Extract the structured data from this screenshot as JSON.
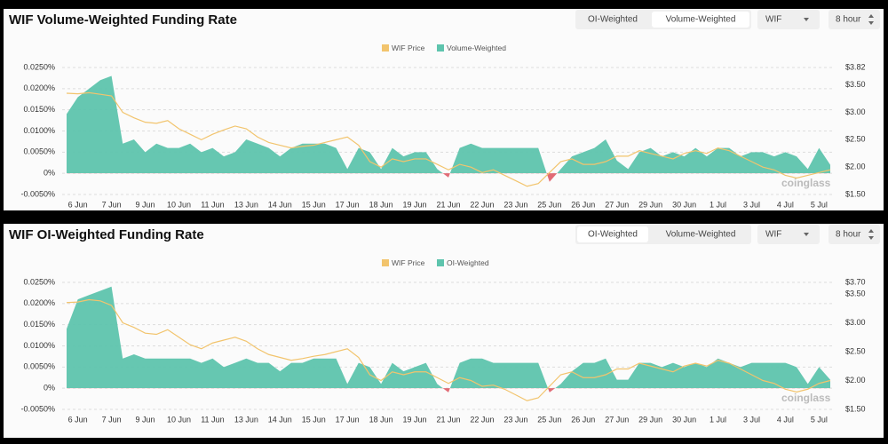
{
  "chart_data": [
    {
      "type": "area",
      "title": "WIF Volume-Weighted Funding Rate",
      "tabs": [
        "OI-Weighted",
        "Volume-Weighted"
      ],
      "active_tab": 1,
      "symbol": "WIF",
      "interval": "8 hour",
      "watermark": "coinglass",
      "categories": [
        null,
        "6 Jun",
        null,
        null,
        "7 Jun",
        null,
        null,
        "9 Jun",
        null,
        null,
        "10 Jun",
        null,
        null,
        "11 Jun",
        null,
        null,
        "13 Jun",
        null,
        null,
        "14 Jun",
        null,
        null,
        "15 Jun",
        null,
        null,
        "17 Jun",
        null,
        null,
        "18 Jun",
        null,
        null,
        "19 Jun",
        null,
        null,
        "21 Jun",
        null,
        null,
        "22 Jun",
        null,
        null,
        "23 Jun",
        null,
        null,
        "25 Jun",
        null,
        null,
        "26 Jun",
        null,
        null,
        "27 Jun",
        null,
        null,
        "29 Jun",
        null,
        null,
        "30 Jun",
        null,
        null,
        "1 Jul",
        null,
        null,
        "3 Jul",
        null,
        null,
        "4 Jul",
        null,
        null,
        "5 Jul",
        null
      ],
      "series": [
        {
          "name": "WIF Price",
          "type": "line",
          "axis": "y2",
          "color": "#f2c46d",
          "values": [
            3.35,
            3.34,
            3.36,
            3.33,
            3.3,
            3.0,
            2.9,
            2.82,
            2.8,
            2.85,
            2.7,
            2.6,
            2.5,
            2.6,
            2.68,
            2.75,
            2.7,
            2.55,
            2.45,
            2.4,
            2.35,
            2.38,
            2.4,
            2.45,
            2.5,
            2.55,
            2.4,
            2.1,
            2.0,
            2.15,
            2.1,
            2.15,
            2.15,
            2.05,
            1.95,
            2.05,
            2.0,
            1.9,
            1.95,
            1.85,
            1.75,
            1.65,
            1.7,
            1.9,
            2.1,
            2.15,
            2.05,
            2.05,
            2.1,
            2.2,
            2.2,
            2.3,
            2.25,
            2.2,
            2.15,
            2.25,
            2.3,
            2.25,
            2.35,
            2.3,
            2.2,
            2.1,
            2.0,
            1.95,
            1.85,
            1.8,
            1.85,
            1.9,
            1.95
          ]
        },
        {
          "name": "Volume-Weighted",
          "type": "area",
          "color": "#5ec4ad",
          "negative_color": "#e0636e",
          "values": [
            0.014,
            0.018,
            0.02,
            0.022,
            0.023,
            0.007,
            0.008,
            0.005,
            0.007,
            0.006,
            0.006,
            0.007,
            0.005,
            0.006,
            0.004,
            0.005,
            0.008,
            0.007,
            0.006,
            0.004,
            0.006,
            0.007,
            0.007,
            0.007,
            0.006,
            0.001,
            0.006,
            0.005,
            0.001,
            0.006,
            0.004,
            0.005,
            0.005,
            0.001,
            -0.001,
            0.006,
            0.007,
            0.006,
            0.006,
            0.006,
            0.006,
            0.006,
            0.006,
            -0.002,
            0.001,
            0.004,
            0.005,
            0.006,
            0.008,
            0.003,
            0.001,
            0.005,
            0.006,
            0.004,
            0.005,
            0.004,
            0.006,
            0.004,
            0.006,
            0.006,
            0.004,
            0.005,
            0.005,
            0.004,
            0.005,
            0.004,
            0.001,
            0.006,
            0.002
          ]
        }
      ],
      "ylim": [
        -0.005,
        0.025
      ],
      "yticks": [
        {
          "value": -0.005,
          "label": "-0.0050%"
        },
        {
          "value": 0,
          "label": "0%"
        },
        {
          "value": 0.005,
          "label": "0.0050%"
        },
        {
          "value": 0.01,
          "label": "0.0100%"
        },
        {
          "value": 0.015,
          "label": "0.0150%"
        },
        {
          "value": 0.02,
          "label": "0.0200%"
        },
        {
          "value": 0.025,
          "label": "0.0250%"
        }
      ],
      "y2lim": [
        1.5,
        3.82
      ],
      "y2ticks": [
        {
          "value": 1.5,
          "label": "$1.50"
        },
        {
          "value": 2,
          "label": "$2.00"
        },
        {
          "value": 2.5,
          "label": "$2.50"
        },
        {
          "value": 3,
          "label": "$3.00"
        },
        {
          "value": 3.5,
          "label": "$3.50"
        },
        {
          "value": 3.82,
          "label": "$3.82"
        }
      ],
      "grid": true
    },
    {
      "type": "area",
      "title": "WIF OI-Weighted Funding Rate",
      "tabs": [
        "OI-Weighted",
        "Volume-Weighted"
      ],
      "active_tab": 0,
      "symbol": "WIF",
      "interval": "8 hour",
      "watermark": "coinglass",
      "categories": [
        null,
        "6 Jun",
        null,
        null,
        "7 Jun",
        null,
        null,
        "9 Jun",
        null,
        null,
        "10 Jun",
        null,
        null,
        "11 Jun",
        null,
        null,
        "13 Jun",
        null,
        null,
        "14 Jun",
        null,
        null,
        "15 Jun",
        null,
        null,
        "17 Jun",
        null,
        null,
        "18 Jun",
        null,
        null,
        "19 Jun",
        null,
        null,
        "21 Jun",
        null,
        null,
        "22 Jun",
        null,
        null,
        "23 Jun",
        null,
        null,
        "25 Jun",
        null,
        null,
        "26 Jun",
        null,
        null,
        "27 Jun",
        null,
        null,
        "29 Jun",
        null,
        null,
        "30 Jun",
        null,
        null,
        "1 Jul",
        null,
        null,
        "3 Jul",
        null,
        null,
        "4 Jul",
        null,
        null,
        "5 Jul",
        null
      ],
      "series": [
        {
          "name": "WIF Price",
          "type": "line",
          "axis": "y2",
          "color": "#f2c46d",
          "values": [
            3.35,
            3.36,
            3.4,
            3.38,
            3.3,
            3.0,
            2.92,
            2.82,
            2.8,
            2.88,
            2.75,
            2.62,
            2.55,
            2.65,
            2.7,
            2.75,
            2.68,
            2.55,
            2.45,
            2.4,
            2.35,
            2.38,
            2.42,
            2.45,
            2.5,
            2.55,
            2.4,
            2.1,
            2.0,
            2.15,
            2.1,
            2.15,
            2.15,
            2.05,
            1.95,
            2.05,
            2.0,
            1.9,
            1.92,
            1.85,
            1.75,
            1.65,
            1.7,
            1.9,
            2.1,
            2.15,
            2.05,
            2.05,
            2.1,
            2.2,
            2.2,
            2.3,
            2.25,
            2.2,
            2.15,
            2.25,
            2.3,
            2.25,
            2.35,
            2.3,
            2.2,
            2.1,
            2.0,
            1.95,
            1.85,
            1.8,
            1.85,
            1.95,
            2.0
          ]
        },
        {
          "name": "OI-Weighted",
          "type": "area",
          "color": "#5ec4ad",
          "negative_color": "#e0636e",
          "values": [
            0.014,
            0.021,
            0.022,
            0.023,
            0.024,
            0.007,
            0.008,
            0.007,
            0.007,
            0.007,
            0.007,
            0.007,
            0.006,
            0.007,
            0.005,
            0.006,
            0.007,
            0.006,
            0.006,
            0.004,
            0.006,
            0.006,
            0.007,
            0.007,
            0.007,
            0.001,
            0.006,
            0.005,
            0.001,
            0.006,
            0.004,
            0.005,
            0.006,
            0.001,
            -0.001,
            0.006,
            0.007,
            0.007,
            0.006,
            0.006,
            0.006,
            0.006,
            0.006,
            -0.001,
            0.001,
            0.004,
            0.006,
            0.006,
            0.007,
            0.002,
            0.002,
            0.006,
            0.006,
            0.005,
            0.006,
            0.005,
            0.006,
            0.005,
            0.007,
            0.006,
            0.005,
            0.006,
            0.006,
            0.006,
            0.006,
            0.005,
            0.001,
            0.005,
            0.002
          ]
        }
      ],
      "ylim": [
        -0.005,
        0.025
      ],
      "yticks": [
        {
          "value": -0.005,
          "label": "-0.0050%"
        },
        {
          "value": 0,
          "label": "0%"
        },
        {
          "value": 0.005,
          "label": "0.0050%"
        },
        {
          "value": 0.01,
          "label": "0.0100%"
        },
        {
          "value": 0.015,
          "label": "0.0150%"
        },
        {
          "value": 0.02,
          "label": "0.0200%"
        },
        {
          "value": 0.025,
          "label": "0.0250%"
        }
      ],
      "y2lim": [
        1.5,
        3.7
      ],
      "y2ticks": [
        {
          "value": 1.5,
          "label": "$1.50"
        },
        {
          "value": 2,
          "label": "$2.00"
        },
        {
          "value": 2.5,
          "label": "$2.50"
        },
        {
          "value": 3,
          "label": "$3.00"
        },
        {
          "value": 3.5,
          "label": "$3.50"
        },
        {
          "value": 3.7,
          "label": "$3.70"
        }
      ],
      "grid": true
    }
  ]
}
